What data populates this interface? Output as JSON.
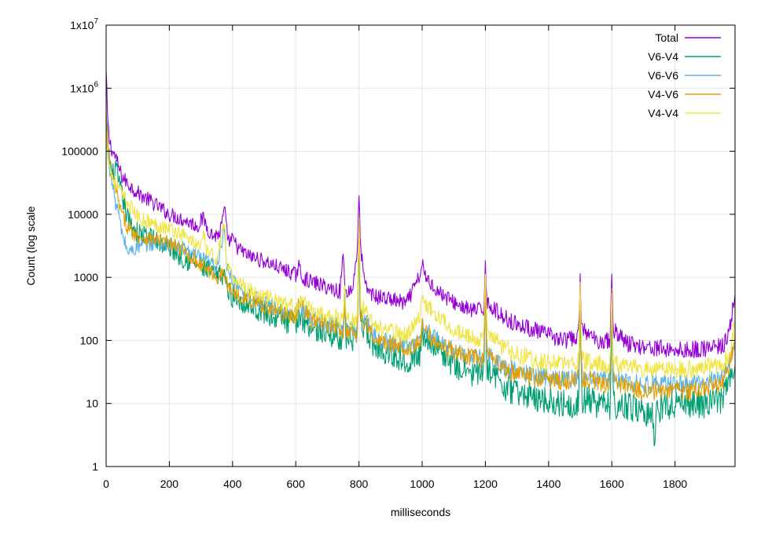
{
  "chart_data": {
    "type": "line",
    "title": "",
    "xlabel": "milliseconds",
    "ylabel": "Count (log scale",
    "xlim": [
      0,
      1990
    ],
    "ylim": [
      1,
      10000000
    ],
    "yscale": "log",
    "grid": true,
    "legend_position": "top-right",
    "x_ticks": [
      {
        "value": 0,
        "label": "0"
      },
      {
        "value": 200,
        "label": "200"
      },
      {
        "value": 400,
        "label": "400"
      },
      {
        "value": 600,
        "label": "600"
      },
      {
        "value": 800,
        "label": "800"
      },
      {
        "value": 1000,
        "label": "1000"
      },
      {
        "value": 1200,
        "label": "1200"
      },
      {
        "value": 1400,
        "label": "1400"
      },
      {
        "value": 1600,
        "label": "1600"
      },
      {
        "value": 1800,
        "label": "1800"
      }
    ],
    "y_ticks": [
      {
        "value": 1,
        "label": "1"
      },
      {
        "value": 10,
        "label": "10"
      },
      {
        "value": 100,
        "label": "100"
      },
      {
        "value": 1000,
        "label": "1000"
      },
      {
        "value": 10000,
        "label": "10000"
      },
      {
        "value": 100000,
        "label": "100000"
      },
      {
        "value": 1000000,
        "label": "1x10",
        "exp": "6"
      },
      {
        "value": 10000000,
        "label": "1x10",
        "exp": "7"
      }
    ],
    "series": [
      {
        "name": "Total",
        "color": "#9400d3",
        "x": [
          0,
          5,
          10,
          20,
          30,
          40,
          50,
          70,
          100,
          150,
          200,
          250,
          290,
          300,
          310,
          320,
          340,
          360,
          375,
          380,
          390,
          400,
          420,
          450,
          500,
          550,
          600,
          610,
          620,
          650,
          700,
          740,
          750,
          755,
          760,
          780,
          795,
          800,
          805,
          820,
          850,
          900,
          950,
          995,
          1000,
          1005,
          1050,
          1100,
          1150,
          1195,
          1200,
          1205,
          1250,
          1300,
          1350,
          1400,
          1450,
          1495,
          1500,
          1505,
          1550,
          1595,
          1600,
          1605,
          1650,
          1700,
          1750,
          1800,
          1850,
          1900,
          1950,
          1970,
          1980,
          1990
        ],
        "values": [
          1800000,
          300000,
          150000,
          100000,
          80000,
          55000,
          40000,
          30000,
          22000,
          15000,
          10000,
          8000,
          6500,
          8000,
          8500,
          6000,
          4500,
          5000,
          12000,
          6000,
          3500,
          4000,
          2800,
          2200,
          1800,
          1400,
          1100,
          1500,
          1000,
          850,
          700,
          600,
          2500,
          700,
          600,
          650,
          3000,
          20000,
          3000,
          700,
          500,
          450,
          380,
          1100,
          1900,
          1100,
          600,
          400,
          300,
          300,
          1800,
          400,
          250,
          180,
          150,
          120,
          100,
          110,
          1100,
          150,
          100,
          100,
          1050,
          150,
          90,
          80,
          75,
          70,
          70,
          75,
          80,
          120,
          250,
          600
        ]
      },
      {
        "name": "V6-V4",
        "color": "#009e73",
        "x": [
          0,
          5,
          10,
          20,
          30,
          40,
          50,
          70,
          100,
          150,
          200,
          250,
          300,
          350,
          375,
          380,
          400,
          450,
          500,
          550,
          600,
          610,
          650,
          700,
          750,
          755,
          760,
          795,
          800,
          805,
          850,
          900,
          950,
          995,
          1000,
          1005,
          1050,
          1100,
          1150,
          1195,
          1200,
          1205,
          1250,
          1300,
          1350,
          1400,
          1450,
          1495,
          1500,
          1505,
          1550,
          1595,
          1600,
          1605,
          1650,
          1700,
          1730,
          1735,
          1740,
          1760,
          1800,
          1850,
          1900,
          1950,
          1970,
          1990
        ],
        "values": [
          300000,
          150000,
          80000,
          40000,
          55000,
          30000,
          20000,
          8000,
          5000,
          4000,
          3000,
          2000,
          1500,
          1000,
          1200,
          700,
          500,
          380,
          280,
          220,
          180,
          250,
          160,
          130,
          110,
          400,
          110,
          100,
          4000,
          200,
          80,
          60,
          50,
          60,
          150,
          120,
          80,
          40,
          30,
          30,
          500,
          40,
          20,
          15,
          13,
          11,
          10,
          10,
          300,
          12,
          10,
          9,
          300,
          10,
          9,
          8,
          6,
          2,
          8,
          9,
          10,
          10,
          10,
          12,
          20,
          40
        ]
      },
      {
        "name": "V6-V6",
        "color": "#56b4e9",
        "x": [
          0,
          5,
          10,
          20,
          30,
          40,
          50,
          70,
          100,
          150,
          200,
          250,
          300,
          350,
          375,
          380,
          400,
          450,
          500,
          550,
          600,
          610,
          650,
          700,
          750,
          755,
          760,
          795,
          800,
          805,
          850,
          900,
          950,
          995,
          1000,
          1005,
          1050,
          1100,
          1150,
          1195,
          1200,
          1205,
          1250,
          1300,
          1350,
          1400,
          1450,
          1495,
          1500,
          1505,
          1550,
          1595,
          1600,
          1605,
          1650,
          1700,
          1750,
          1800,
          1850,
          1900,
          1950,
          1970,
          1990
        ],
        "values": [
          400000,
          120000,
          60000,
          30000,
          15000,
          10000,
          5000,
          2500,
          3000,
          3500,
          3200,
          2800,
          2000,
          1500,
          6000,
          1500,
          900,
          550,
          380,
          300,
          250,
          400,
          220,
          190,
          160,
          600,
          150,
          140,
          7000,
          300,
          110,
          90,
          80,
          100,
          200,
          150,
          100,
          70,
          55,
          50,
          900,
          60,
          40,
          32,
          28,
          26,
          24,
          25,
          500,
          28,
          25,
          24,
          500,
          25,
          22,
          20,
          20,
          20,
          20,
          22,
          25,
          40,
          80
        ]
      },
      {
        "name": "V4-V6",
        "color": "#e69f00",
        "x": [
          0,
          5,
          10,
          20,
          30,
          40,
          50,
          70,
          100,
          150,
          200,
          250,
          300,
          350,
          375,
          380,
          400,
          450,
          500,
          550,
          600,
          610,
          650,
          700,
          750,
          755,
          760,
          795,
          800,
          805,
          850,
          900,
          950,
          995,
          1000,
          1005,
          1050,
          1100,
          1150,
          1195,
          1200,
          1205,
          1250,
          1300,
          1350,
          1400,
          1450,
          1495,
          1500,
          1505,
          1550,
          1595,
          1600,
          1605,
          1650,
          1700,
          1750,
          1800,
          1850,
          1900,
          1950,
          1970,
          1990
        ],
        "values": [
          350000,
          130000,
          70000,
          35000,
          25000,
          15000,
          10000,
          6000,
          4500,
          4000,
          3500,
          2500,
          1600,
          1000,
          1200,
          800,
          600,
          450,
          350,
          280,
          230,
          400,
          200,
          170,
          140,
          500,
          140,
          130,
          8000,
          250,
          100,
          85,
          75,
          90,
          170,
          140,
          90,
          65,
          55,
          50,
          800,
          60,
          38,
          30,
          26,
          24,
          22,
          24,
          600,
          25,
          22,
          20,
          600,
          22,
          18,
          16,
          16,
          16,
          16,
          18,
          22,
          40,
          90
        ]
      },
      {
        "name": "V4-V4",
        "color": "#f0e442",
        "x": [
          0,
          5,
          10,
          20,
          30,
          40,
          50,
          70,
          100,
          150,
          200,
          250,
          300,
          310,
          320,
          350,
          375,
          380,
          400,
          450,
          500,
          550,
          600,
          610,
          650,
          700,
          750,
          755,
          760,
          795,
          800,
          805,
          850,
          900,
          950,
          995,
          1000,
          1005,
          1050,
          1100,
          1150,
          1195,
          1200,
          1205,
          1250,
          1300,
          1350,
          1400,
          1450,
          1495,
          1500,
          1505,
          1550,
          1595,
          1600,
          1605,
          1650,
          1700,
          1750,
          1800,
          1850,
          1900,
          1950,
          1970,
          1990
        ],
        "values": [
          200000,
          100000,
          60000,
          40000,
          30000,
          25000,
          20000,
          15000,
          9000,
          7000,
          6000,
          4500,
          3000,
          4500,
          2500,
          2000,
          8000,
          1500,
          1000,
          650,
          500,
          400,
          330,
          450,
          300,
          250,
          220,
          1000,
          220,
          200,
          11000,
          400,
          170,
          140,
          120,
          250,
          500,
          400,
          250,
          150,
          110,
          100,
          1200,
          150,
          80,
          60,
          50,
          45,
          42,
          45,
          800,
          50,
          42,
          40,
          600,
          45,
          38,
          35,
          35,
          35,
          35,
          38,
          42,
          60,
          180
        ]
      }
    ]
  }
}
